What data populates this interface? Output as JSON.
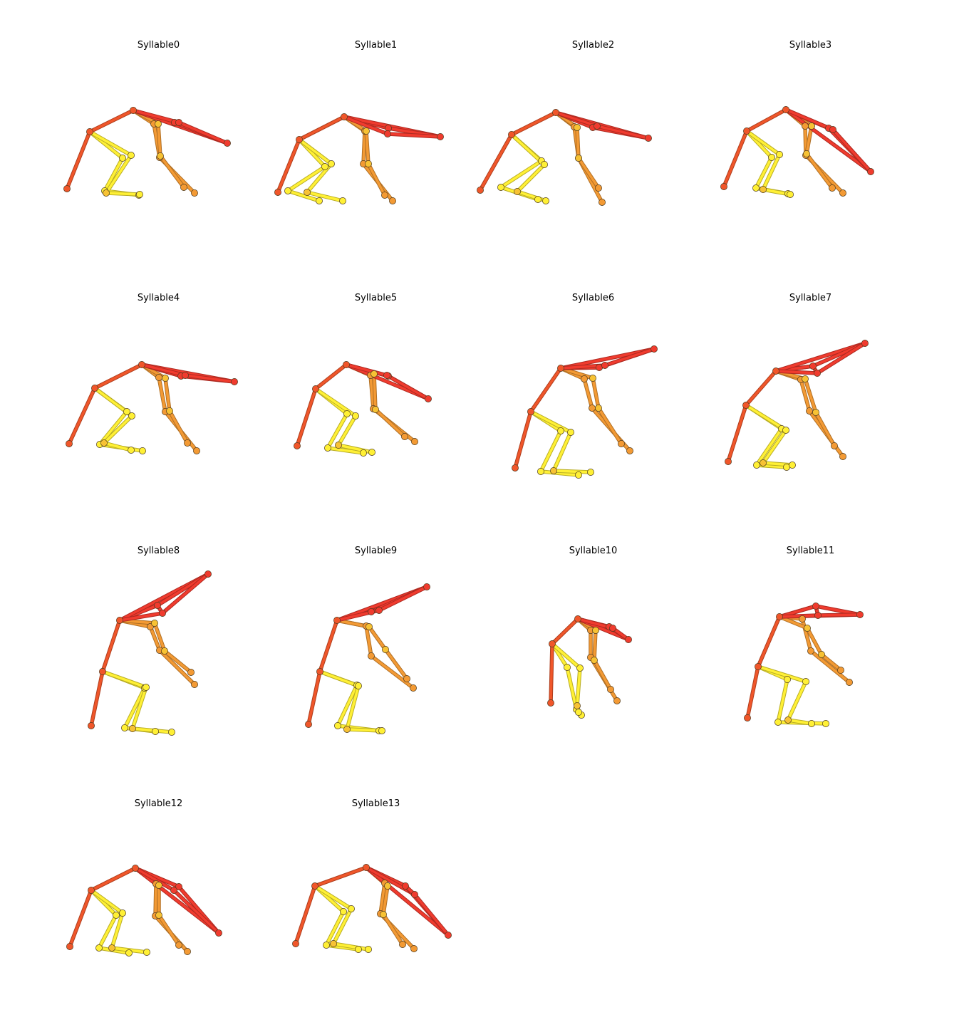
{
  "colors": {
    "red": "#f03b2e",
    "red_orange": "#f0562a",
    "orange": "#f39a34",
    "amber": "#f7c234",
    "yellow": "#fff035",
    "node_stroke": "#4d3a1e"
  },
  "edge_groups": [
    {
      "name": "head",
      "color": "red",
      "edges": [
        [
          0,
          1
        ],
        [
          0,
          2
        ],
        [
          0,
          3
        ],
        [
          1,
          2
        ],
        [
          1,
          3
        ],
        [
          2,
          3
        ]
      ]
    },
    {
      "name": "spine",
      "color": "red_orange",
      "edges": [
        [
          0,
          4
        ],
        [
          4,
          5
        ],
        [
          0,
          1
        ]
      ]
    },
    {
      "name": "front-legs",
      "color": "orange",
      "edges": [
        [
          0,
          6
        ],
        [
          6,
          7
        ],
        [
          7,
          8
        ],
        [
          0,
          9
        ],
        [
          9,
          10
        ],
        [
          10,
          11
        ]
      ]
    },
    {
      "name": "hind-legs",
      "color": "yellow",
      "edges": [
        [
          4,
          12
        ],
        [
          12,
          13
        ],
        [
          13,
          14
        ],
        [
          4,
          15
        ],
        [
          15,
          16
        ],
        [
          16,
          17
        ]
      ]
    }
  ],
  "node_colors": [
    "red_orange",
    "red",
    "red",
    "red",
    "red_orange",
    "red_orange",
    "orange",
    "orange",
    "orange",
    "amber",
    "amber",
    "orange",
    "yellow",
    "yellow",
    "yellow",
    "yellow",
    "amber",
    "yellow"
  ],
  "panels": [
    {
      "title": "Syllable0",
      "pose": [
        [
          187,
          155
        ],
        [
          245,
          172
        ],
        [
          319,
          201
        ],
        [
          251,
          172
        ],
        [
          126,
          185
        ],
        [
          94,
          265
        ],
        [
          216,
          174
        ],
        [
          224,
          221
        ],
        [
          273,
          271
        ],
        [
          222,
          174
        ],
        [
          225,
          219
        ],
        [
          258,
          263
        ],
        [
          172,
          222
        ],
        [
          147,
          268
        ],
        [
          195,
          274
        ],
        [
          184,
          218
        ],
        [
          149,
          271
        ],
        [
          196,
          273
        ]
      ]
    },
    {
      "title": "Syllable1",
      "pose": [
        [
          483,
          164
        ],
        [
          545,
          180
        ],
        [
          618,
          192
        ],
        [
          544,
          188
        ],
        [
          420,
          196
        ],
        [
          390,
          270
        ],
        [
          512,
          184
        ],
        [
          510,
          230
        ],
        [
          551,
          282
        ],
        [
          514,
          184
        ],
        [
          517,
          230
        ],
        [
          540,
          274
        ],
        [
          456,
          234
        ],
        [
          404,
          268
        ],
        [
          448,
          282
        ],
        [
          465,
          230
        ],
        [
          431,
          270
        ],
        [
          481,
          282
        ]
      ]
    },
    {
      "title": "Syllable2",
      "pose": [
        [
          780,
          158
        ],
        [
          832,
          179
        ],
        [
          910,
          194
        ],
        [
          838,
          177
        ],
        [
          718,
          189
        ],
        [
          674,
          267
        ],
        [
          806,
          178
        ],
        [
          812,
          222
        ],
        [
          845,
          284
        ],
        [
          810,
          179
        ],
        [
          812,
          222
        ],
        [
          840,
          264
        ],
        [
          760,
          226
        ],
        [
          703,
          263
        ],
        [
          755,
          280
        ],
        [
          764,
          231
        ],
        [
          726,
          269
        ],
        [
          766,
          282
        ]
      ]
    },
    {
      "title": "Syllable3",
      "pose": [
        [
          1103,
          154
        ],
        [
          1163,
          180
        ],
        [
          1222,
          241
        ],
        [
          1169,
          182
        ],
        [
          1048,
          184
        ],
        [
          1016,
          262
        ],
        [
          1130,
          177
        ],
        [
          1131,
          218
        ],
        [
          1183,
          271
        ],
        [
          1139,
          177
        ],
        [
          1132,
          216
        ],
        [
          1168,
          264
        ],
        [
          1083,
          221
        ],
        [
          1061,
          264
        ],
        [
          1106,
          272
        ],
        [
          1094,
          217
        ],
        [
          1071,
          266
        ],
        [
          1109,
          273
        ]
      ]
    },
    {
      "title": "Syllable4",
      "pose": [
        [
          199,
          512
        ],
        [
          254,
          528
        ],
        [
          329,
          536
        ],
        [
          260,
          527
        ],
        [
          133,
          545
        ],
        [
          97,
          623
        ],
        [
          223,
          530
        ],
        [
          232,
          578
        ],
        [
          276,
          633
        ],
        [
          232,
          531
        ],
        [
          238,
          577
        ],
        [
          263,
          622
        ],
        [
          178,
          578
        ],
        [
          140,
          624
        ],
        [
          200,
          633
        ],
        [
          185,
          584
        ],
        [
          146,
          622
        ],
        [
          184,
          632
        ]
      ]
    },
    {
      "title": "Syllable5",
      "pose": [
        [
          486,
          512
        ],
        [
          545,
          528
        ],
        [
          601,
          560
        ],
        [
          543,
          527
        ],
        [
          443,
          546
        ],
        [
          417,
          626
        ],
        [
          520,
          527
        ],
        [
          524,
          574
        ],
        [
          582,
          620
        ],
        [
          525,
          525
        ],
        [
          527,
          575
        ],
        [
          568,
          613
        ],
        [
          487,
          581
        ],
        [
          460,
          629
        ],
        [
          510,
          636
        ],
        [
          499,
          584
        ],
        [
          475,
          625
        ],
        [
          522,
          635
        ]
      ]
    },
    {
      "title": "Syllable6",
      "pose": [
        [
          787,
          517
        ],
        [
          841,
          516
        ],
        [
          918,
          490
        ],
        [
          849,
          513
        ],
        [
          745,
          578
        ],
        [
          723,
          657
        ],
        [
          820,
          532
        ],
        [
          831,
          573
        ],
        [
          884,
          633
        ],
        [
          832,
          531
        ],
        [
          840,
          573
        ],
        [
          872,
          623
        ],
        [
          787,
          605
        ],
        [
          759,
          662
        ],
        [
          812,
          667
        ],
        [
          801,
          607
        ],
        [
          777,
          661
        ],
        [
          829,
          663
        ]
      ]
    },
    {
      "title": "Syllable7",
      "pose": [
        [
          1089,
          521
        ],
        [
          1141,
          514
        ],
        [
          1214,
          482
        ],
        [
          1147,
          524
        ],
        [
          1047,
          569
        ],
        [
          1022,
          648
        ],
        [
          1124,
          533
        ],
        [
          1136,
          577
        ],
        [
          1183,
          641
        ],
        [
          1130,
          532
        ],
        [
          1145,
          579
        ],
        [
          1171,
          626
        ],
        [
          1097,
          602
        ],
        [
          1062,
          653
        ],
        [
          1104,
          656
        ],
        [
          1103,
          604
        ],
        [
          1071,
          650
        ],
        [
          1112,
          653
        ]
      ]
    },
    {
      "title": "Syllable8",
      "pose": [
        [
          168,
          871
        ],
        [
          221,
          850
        ],
        [
          292,
          806
        ],
        [
          228,
          861
        ],
        [
          144,
          943
        ],
        [
          128,
          1019
        ],
        [
          211,
          880
        ],
        [
          224,
          913
        ],
        [
          273,
          961
        ],
        [
          217,
          875
        ],
        [
          231,
          914
        ],
        [
          268,
          944
        ],
        [
          203,
          966
        ],
        [
          175,
          1022
        ],
        [
          218,
          1027
        ],
        [
          205,
          965
        ],
        [
          186,
          1023
        ],
        [
          241,
          1028
        ]
      ]
    },
    {
      "title": "Syllable9",
      "pose": [
        [
          473,
          871
        ],
        [
          521,
          859
        ],
        [
          599,
          824
        ],
        [
          532,
          857
        ],
        [
          449,
          943
        ],
        [
          433,
          1017
        ],
        [
          514,
          879
        ],
        [
          521,
          921
        ],
        [
          580,
          966
        ],
        [
          518,
          880
        ],
        [
          541,
          912
        ],
        [
          571,
          953
        ],
        [
          501,
          962
        ],
        [
          474,
          1019
        ],
        [
          532,
          1026
        ],
        [
          503,
          963
        ],
        [
          487,
          1024
        ],
        [
          536,
          1026
        ]
      ]
    },
    {
      "title": "Syllable10",
      "pose": [
        [
          811,
          869
        ],
        [
          855,
          880
        ],
        [
          882,
          898
        ],
        [
          860,
          882
        ],
        [
          775,
          904
        ],
        [
          773,
          987
        ],
        [
          829,
          885
        ],
        [
          829,
          923
        ],
        [
          866,
          984
        ],
        [
          836,
          885
        ],
        [
          834,
          927
        ],
        [
          857,
          968
        ],
        [
          796,
          937
        ],
        [
          809,
          996
        ],
        [
          816,
          1004
        ],
        [
          814,
          938
        ],
        [
          810,
          991
        ],
        [
          812,
          1000
        ]
      ]
    },
    {
      "title": "Syllable11",
      "pose": [
        [
          1094,
          866
        ],
        [
          1145,
          851
        ],
        [
          1207,
          863
        ],
        [
          1148,
          864
        ],
        [
          1064,
          936
        ],
        [
          1049,
          1008
        ],
        [
          1126,
          869
        ],
        [
          1138,
          914
        ],
        [
          1192,
          958
        ],
        [
          1133,
          882
        ],
        [
          1153,
          919
        ],
        [
          1180,
          941
        ],
        [
          1105,
          954
        ],
        [
          1092,
          1014
        ],
        [
          1159,
          1016
        ],
        [
          1131,
          957
        ],
        [
          1106,
          1011
        ],
        [
          1139,
          1016
        ]
      ]
    },
    {
      "title": "Syllable12",
      "pose": [
        [
          190,
          1219
        ],
        [
          251,
          1245
        ],
        [
          307,
          1310
        ],
        [
          244,
          1250
        ],
        [
          128,
          1250
        ],
        [
          98,
          1329
        ],
        [
          219,
          1241
        ],
        [
          218,
          1286
        ],
        [
          263,
          1336
        ],
        [
          223,
          1243
        ],
        [
          223,
          1285
        ],
        [
          251,
          1327
        ],
        [
          163,
          1285
        ],
        [
          139,
          1331
        ],
        [
          181,
          1338
        ],
        [
          172,
          1282
        ],
        [
          157,
          1331
        ],
        [
          206,
          1337
        ]
      ]
    },
    {
      "title": "Syllable13",
      "pose": [
        [
          514,
          1218
        ],
        [
          569,
          1244
        ],
        [
          629,
          1313
        ],
        [
          582,
          1256
        ],
        [
          442,
          1244
        ],
        [
          415,
          1325
        ],
        [
          540,
          1240
        ],
        [
          534,
          1283
        ],
        [
          581,
          1332
        ],
        [
          544,
          1244
        ],
        [
          538,
          1284
        ],
        [
          565,
          1326
        ],
        [
          482,
          1280
        ],
        [
          458,
          1327
        ],
        [
          503,
          1333
        ],
        [
          493,
          1276
        ],
        [
          468,
          1325
        ],
        [
          517,
          1333
        ]
      ]
    }
  ]
}
